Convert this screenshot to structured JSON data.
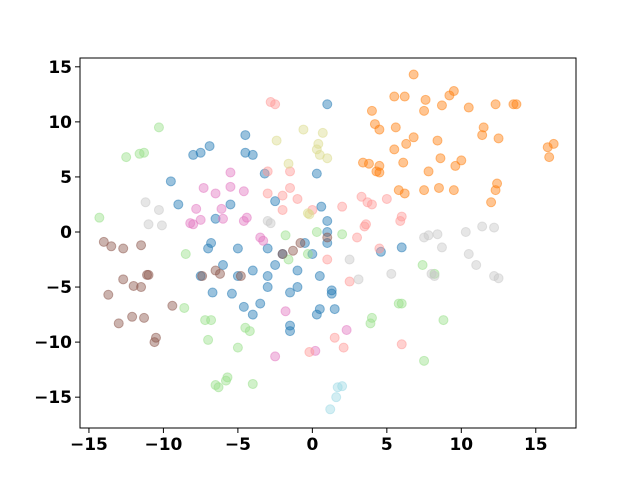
{
  "chart_data": {
    "type": "scatter",
    "xlim": [
      -15.6,
      17.7
    ],
    "ylim": [
      -17.8,
      15.8
    ],
    "xticks": [
      {
        "value": -15,
        "label": "−15"
      },
      {
        "value": -10,
        "label": "−10"
      },
      {
        "value": -5,
        "label": "−5"
      },
      0,
      5,
      10,
      15
    ],
    "yticks": [
      {
        "value": -15,
        "label": "−15"
      },
      {
        "value": -10,
        "label": "−10"
      },
      {
        "value": -5,
        "label": "−5"
      },
      0,
      5,
      10,
      15
    ],
    "grid": false,
    "series": [
      {
        "color": "#1f77b4",
        "x": [
          1,
          -4.5,
          -6.9,
          -7.5,
          -8,
          -4.5,
          -4,
          -3.2,
          -9.5,
          0.3,
          -9,
          -5.5,
          0.6,
          -2.5,
          -6.5,
          -6.8,
          -7,
          -5,
          -3,
          -2.5,
          -4,
          -5,
          -7.5,
          -6.7,
          -5.4,
          -3,
          -3,
          -3.5,
          -4.6,
          -4,
          -1.5,
          -1,
          -1.5,
          -1.5,
          0.5,
          0.3,
          1.3,
          1.3,
          1.5,
          0.5,
          0,
          1,
          -0.5,
          1,
          1,
          -1,
          4.6,
          6,
          -6,
          -2
        ],
        "y": [
          11.6,
          8.8,
          7.8,
          7.2,
          7,
          7.2,
          7,
          5.3,
          4.6,
          5.3,
          2.5,
          2.5,
          2.3,
          2.8,
          1.2,
          -1,
          -1.5,
          -1.5,
          -1.5,
          -3,
          -3.5,
          -4,
          -4,
          -5.5,
          -5.6,
          -5,
          -4,
          -6.5,
          -6.8,
          -7.5,
          -5.5,
          -3.5,
          -8.5,
          -9,
          -7,
          -7.5,
          -5.3,
          -5.6,
          -7,
          -4,
          -2,
          -1,
          -1,
          0,
          1,
          -5,
          -1.8,
          -1.4,
          -3,
          -2
        ]
      },
      {
        "color": "#ff7f0e",
        "x": [
          6.8,
          5.5,
          6.2,
          7.6,
          9.5,
          9.2,
          10.5,
          12.3,
          13.5,
          13.7,
          4,
          7.5,
          8.7,
          4.2,
          5.6,
          4.5,
          11.5,
          11.4,
          12.5,
          8.4,
          6.8,
          6.3,
          5.5,
          15.8,
          16.2,
          15.9,
          10,
          9.6,
          3.4,
          4.5,
          8.6,
          6.1,
          3.8,
          4.3,
          4.5,
          7.8,
          7.5,
          8.5,
          9.5,
          12.4,
          12.3,
          5.8,
          6.2,
          12
        ],
        "y": [
          14.3,
          12.3,
          12.3,
          12,
          12.8,
          12.4,
          11.3,
          11.6,
          11.6,
          11.6,
          11,
          11,
          11.5,
          9.8,
          9.5,
          9.3,
          9.5,
          8.8,
          8.5,
          8.3,
          8.6,
          8,
          7.5,
          7.7,
          8,
          6.8,
          6.5,
          6,
          6.3,
          6,
          6.7,
          6.3,
          6.2,
          5.5,
          5.4,
          5.5,
          3.8,
          4,
          3.8,
          4.4,
          3.8,
          3.8,
          3.5,
          2.7
        ]
      },
      {
        "color": "#98df8a",
        "x": [
          -10.3,
          -12.5,
          -11.6,
          -11.3,
          -14.3,
          -8.5,
          -7.2,
          -6.8,
          -7,
          -4.2,
          -4.5,
          -6.5,
          -6.3,
          -5.8,
          -5.7,
          -4,
          -8.6,
          -5,
          4,
          3.9,
          5.8,
          6,
          8.2,
          8.8,
          7.5,
          7.4,
          -1.8,
          -0.3,
          0.3,
          -1.6,
          2
        ],
        "y": [
          9.5,
          6.8,
          7.1,
          7.2,
          1.3,
          -2,
          -8,
          -8,
          -9.8,
          -9,
          -8.7,
          -13.9,
          -14.1,
          -13.5,
          -13.2,
          -13.8,
          -6.9,
          -10.5,
          -7.8,
          -8.3,
          -6.5,
          -6.5,
          -3.8,
          -8,
          -11.7,
          -3,
          -0.3,
          -2,
          0,
          -2.5,
          -0.2
        ]
      },
      {
        "color": "#e377c2",
        "x": [
          -7.3,
          -5.5,
          -4.6,
          -6.5,
          -7.8,
          -6.1,
          -6,
          -4.4,
          -7.5,
          -5.5,
          -4.6,
          -8.2,
          -3.5,
          -3.3,
          -8,
          -1.8,
          0.2,
          -2.5,
          2.3
        ],
        "y": [
          4,
          4.1,
          3.7,
          3.5,
          2.1,
          2.1,
          1.2,
          1.3,
          1.1,
          5.4,
          1,
          0.8,
          -0.5,
          -0.8,
          0.7,
          -7.2,
          -10.8,
          -11.3,
          -8.9
        ]
      },
      {
        "color": "#ff9896",
        "x": [
          -2.8,
          -2.5,
          -3,
          -1.5,
          -1.5,
          -3,
          -2,
          -1,
          -2,
          0,
          2,
          3.3,
          3.7,
          4,
          5.9,
          6,
          3.6,
          3,
          4.5,
          1,
          2.5,
          1.5,
          2.1,
          -0.2,
          6,
          3.5,
          5
        ],
        "y": [
          11.8,
          11.6,
          5.5,
          5.5,
          4,
          3.5,
          3.3,
          3,
          2,
          2,
          2.3,
          3.2,
          2.7,
          2.5,
          1,
          1.4,
          0.7,
          -0.5,
          -1.5,
          -2.5,
          -4.5,
          -9.6,
          -10.5,
          -10.9,
          -10.2,
          0.5,
          3
        ]
      },
      {
        "color": "#8c564b",
        "x": [
          -14,
          -13.5,
          -12.7,
          -11.5,
          -12.7,
          -11,
          -11.1,
          -13.7,
          -12,
          -11.5,
          -12.1,
          -11.3,
          -13,
          -10.5,
          -10.6,
          -9.4,
          -7.4,
          -6.5,
          -6.2,
          -4.8,
          -2,
          -1.3,
          -0.8,
          1
        ],
        "y": [
          -0.9,
          -1.3,
          -1.5,
          -1.2,
          -4.3,
          -3.9,
          -3.9,
          -5.7,
          -4.9,
          -5,
          -7.7,
          -7.8,
          -8.3,
          -9.6,
          -10,
          -6.7,
          -4,
          -3.5,
          -3.8,
          -4,
          -2,
          -1.7,
          -1,
          -0.5
        ]
      },
      {
        "color": "#c7c7c7",
        "x": [
          -11.2,
          -11,
          -10.3,
          -10.1,
          -3,
          -2.8,
          7.8,
          7.5,
          8.4,
          8.7,
          10.3,
          11.4,
          12.2,
          10.5,
          11,
          12.2,
          12.5,
          5.3,
          3.1,
          2.5,
          8,
          8.2
        ],
        "y": [
          2.7,
          0.7,
          2,
          0.6,
          1,
          0.8,
          -0.3,
          -0.5,
          -0.2,
          -1.4,
          0,
          0.5,
          0.4,
          -2,
          -3,
          -4,
          -4.2,
          -3.8,
          -4.3,
          -2.5,
          -3.8,
          -4
        ]
      },
      {
        "color": "#9edae5",
        "x": [
          1.2,
          1.7,
          1.6,
          2
        ],
        "y": [
          -16.1,
          -14.1,
          -15,
          -14
        ]
      },
      {
        "color": "#dbdb8d",
        "x": [
          -0.6,
          0.7,
          0.4,
          1,
          -2.4,
          -1.6,
          0.3,
          0.5,
          -0.3,
          -0.2
        ],
        "y": [
          9.3,
          9,
          8,
          6.7,
          8.3,
          6.2,
          7.5,
          7,
          1.7,
          1.6
        ]
      }
    ]
  }
}
